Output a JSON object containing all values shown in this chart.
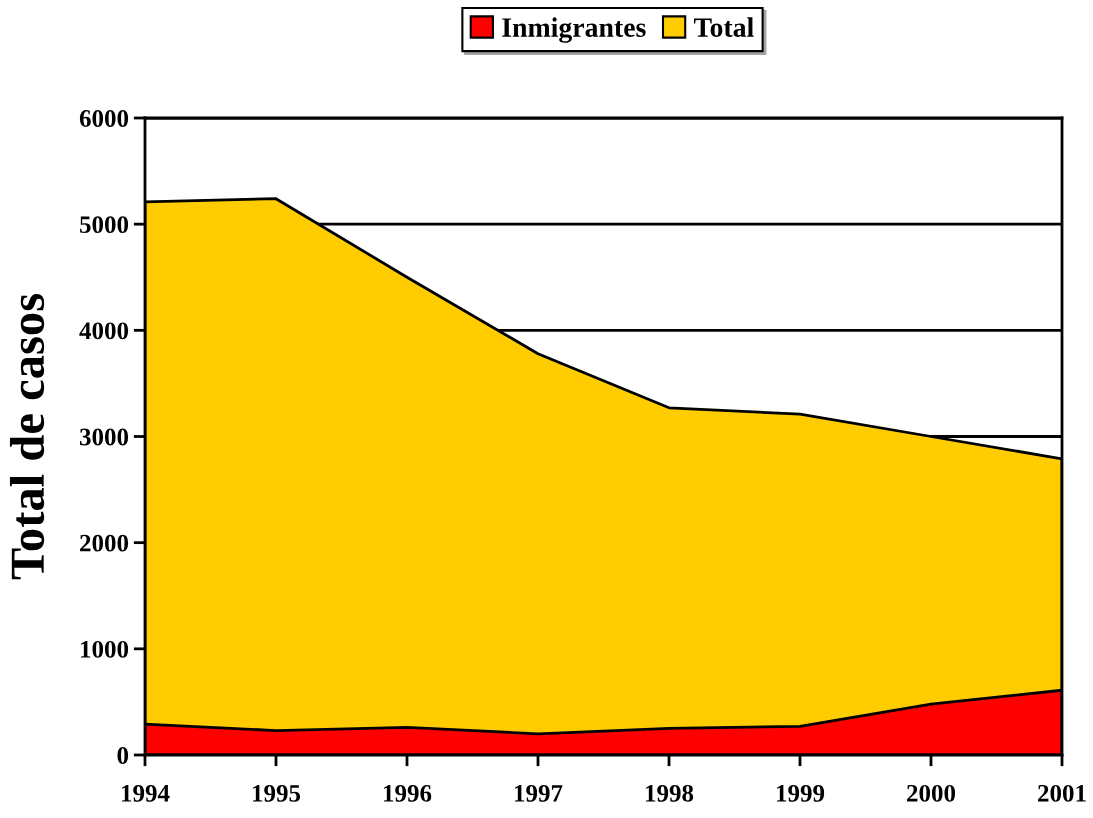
{
  "chart_data": {
    "type": "area",
    "ylabel": "Total de casos",
    "categories": [
      "1994",
      "1995",
      "1996",
      "1997",
      "1998",
      "1999",
      "2000",
      "2001"
    ],
    "series": [
      {
        "name": "Inmigrantes",
        "color": "#ff0000",
        "values": [
          290,
          230,
          260,
          200,
          250,
          270,
          480,
          610
        ]
      },
      {
        "name": "Total",
        "color": "#ffcc00",
        "values": [
          5210,
          5240,
          4500,
          3780,
          3270,
          3210,
          3000,
          2790
        ]
      }
    ],
    "ylim": [
      0,
      6000
    ],
    "yticks": [
      0,
      1000,
      2000,
      3000,
      4000,
      5000,
      6000
    ],
    "grid": "y",
    "legend": "top"
  }
}
